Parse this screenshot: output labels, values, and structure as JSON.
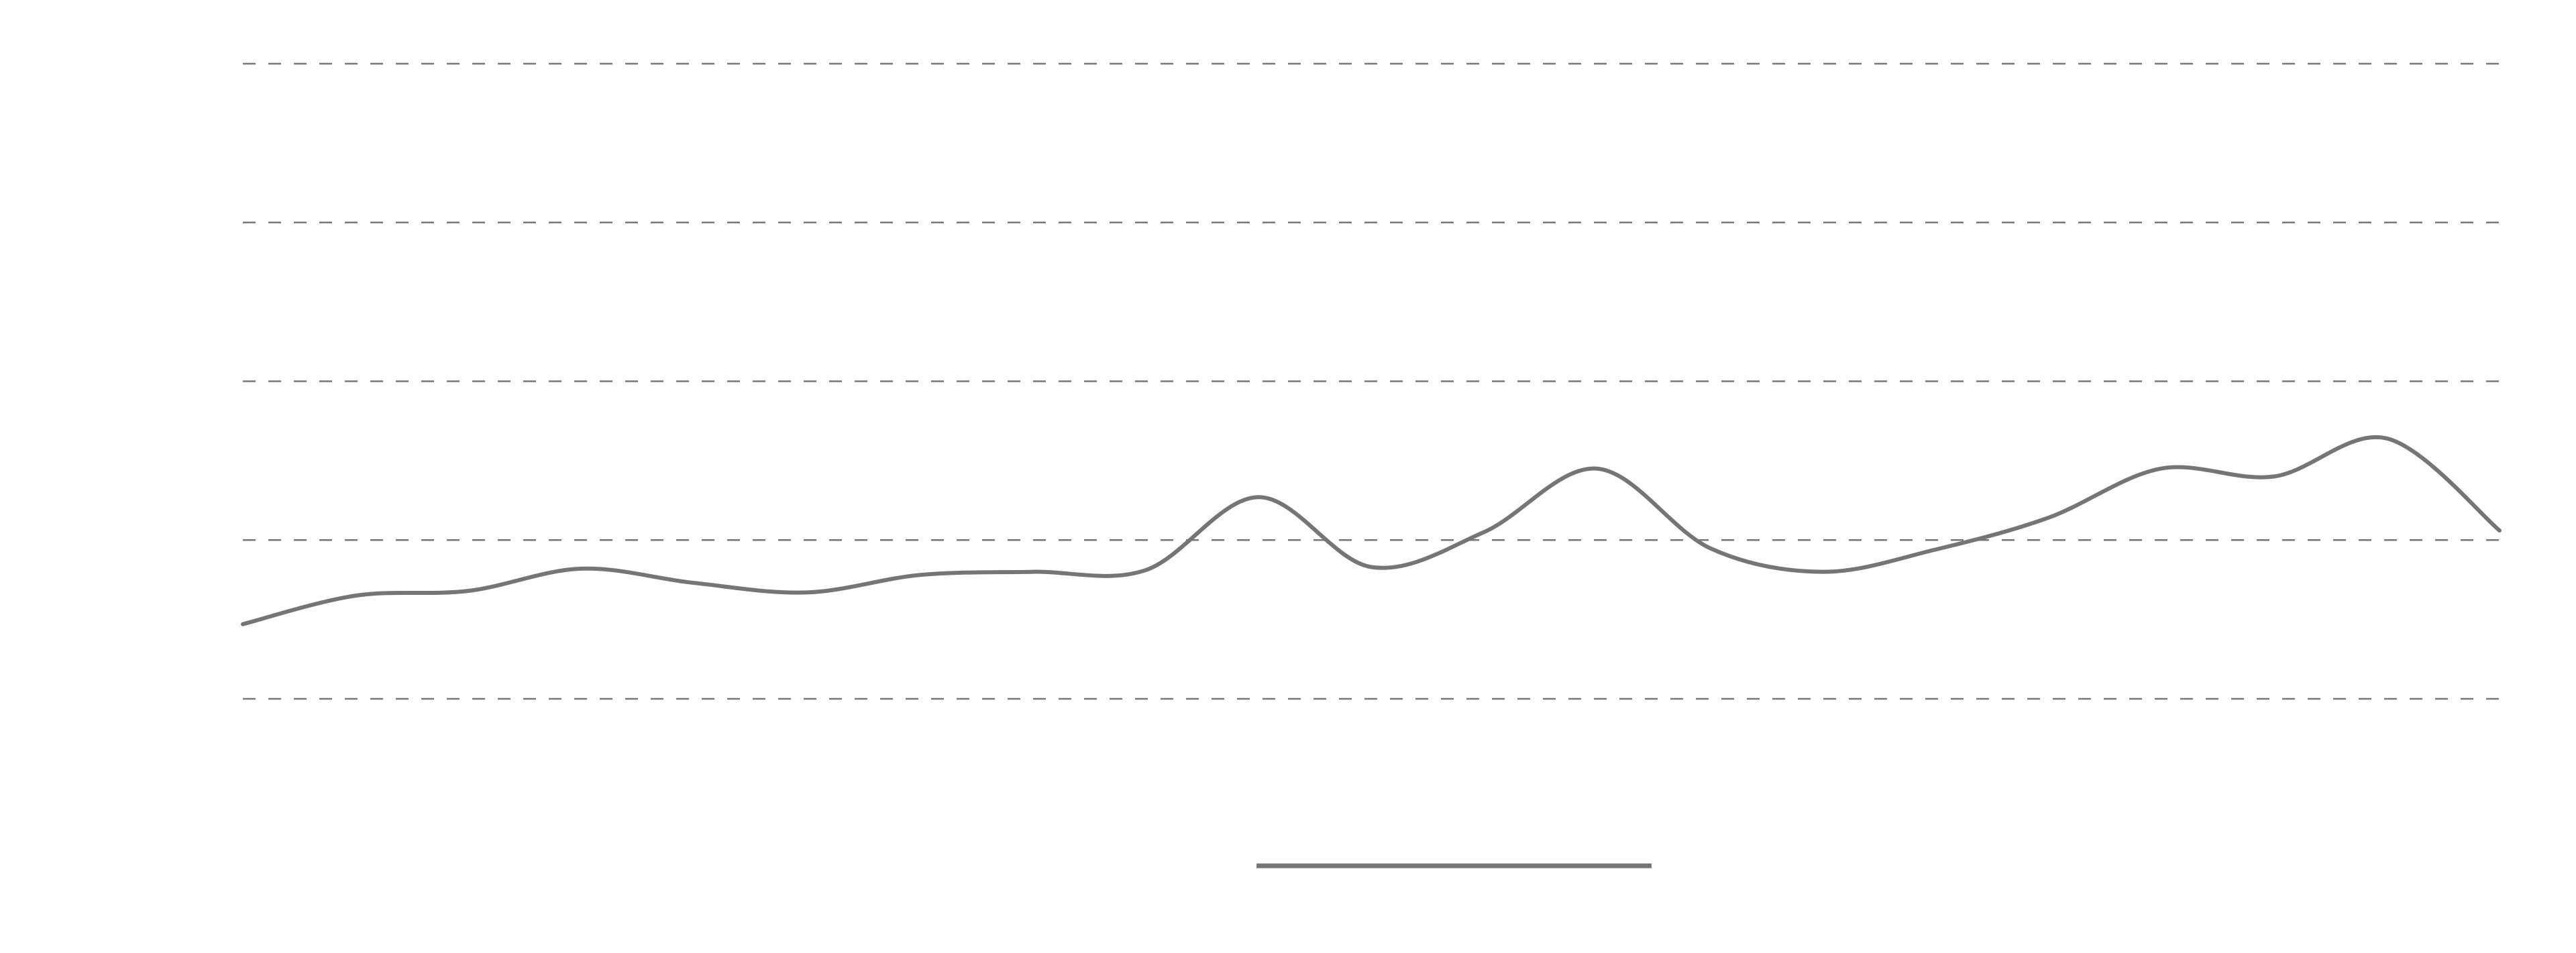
{
  "chart_data": {
    "type": "line",
    "title": "",
    "xlabel": "",
    "ylabel": "",
    "ylim": [
      0,
      4
    ],
    "grid": true,
    "legend": "bottom-center",
    "series": [
      {
        "name": "",
        "color": "#757575",
        "values": [
          0.47,
          0.65,
          0.68,
          0.82,
          0.73,
          0.67,
          0.78,
          0.8,
          0.81,
          1.27,
          0.83,
          1.05,
          1.45,
          0.95,
          0.8,
          0.94,
          1.14,
          1.45,
          1.4,
          1.64,
          1.06
        ]
      }
    ],
    "x": [
      0,
      1,
      2,
      3,
      4,
      5,
      6,
      7,
      8,
      9,
      10,
      11,
      12,
      13,
      14,
      15,
      16,
      17,
      18,
      19,
      20
    ]
  }
}
